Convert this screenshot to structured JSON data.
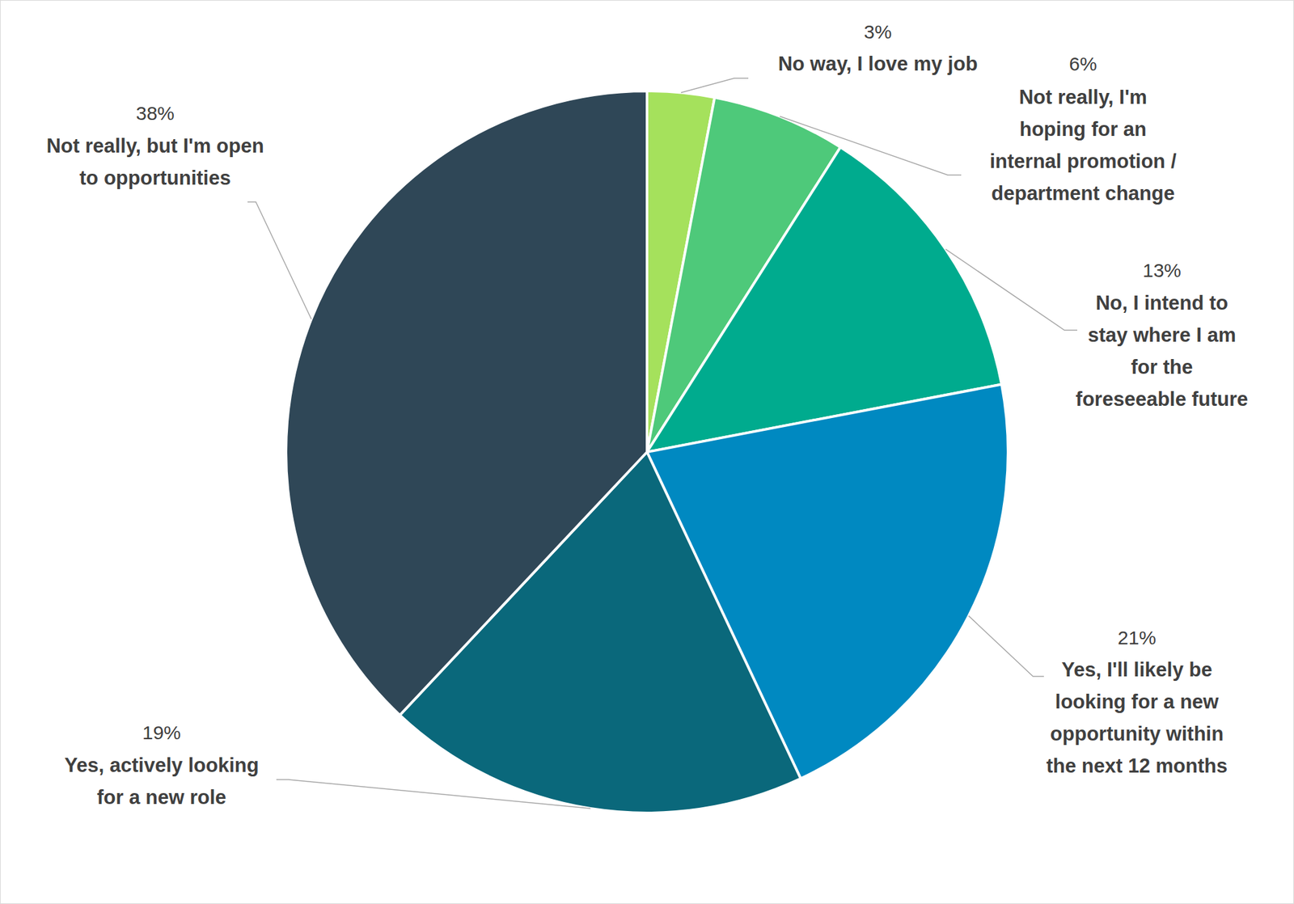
{
  "chart_data": {
    "type": "pie",
    "categories": [
      "No way, I love my job",
      "Not really, I'm hoping for an internal promotion / department change",
      "No, I intend to stay where I am for the foreseeable future",
      "Yes, I'll likely be looking for a new opportunity within the next 12 months",
      "Yes, actively looking for a new role",
      "Not really, but I'm open to opportunities"
    ],
    "values": [
      3,
      6,
      13,
      21,
      19,
      38
    ],
    "value_labels": [
      "3%",
      "6%",
      "13%",
      "21%",
      "19%",
      "38%"
    ],
    "colors": [
      "#a5e15c",
      "#4ec97a",
      "#00ab8e",
      "#0089c1",
      "#0a687b",
      "#2f4757"
    ],
    "data_labels": true
  }
}
